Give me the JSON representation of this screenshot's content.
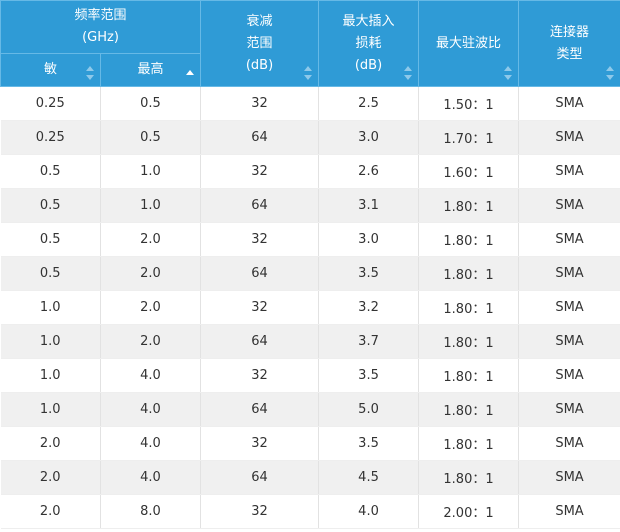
{
  "header": {
    "freq_range_line1": "频率范围",
    "freq_range_line2": "(GHz)",
    "min_label": "敏",
    "max_label": "最高",
    "atten_line1": "衰减",
    "atten_line2": "范围",
    "atten_line3": "(dB)",
    "loss_line1": "最大插入",
    "loss_line2": "损耗",
    "loss_line3": "(dB)",
    "vswr_label": "最大驻波比",
    "conn_line1": "连接器",
    "conn_line2": "类型"
  },
  "rows": [
    {
      "min": "0.25",
      "max": "0.5",
      "atten": "32",
      "loss": "2.5",
      "vswr": "1.50：1",
      "conn": "SMA"
    },
    {
      "min": "0.25",
      "max": "0.5",
      "atten": "64",
      "loss": "3.0",
      "vswr": "1.70：1",
      "conn": "SMA"
    },
    {
      "min": "0.5",
      "max": "1.0",
      "atten": "32",
      "loss": "2.6",
      "vswr": "1.60：1",
      "conn": "SMA"
    },
    {
      "min": "0.5",
      "max": "1.0",
      "atten": "64",
      "loss": "3.1",
      "vswr": "1.80：1",
      "conn": "SMA"
    },
    {
      "min": "0.5",
      "max": "2.0",
      "atten": "32",
      "loss": "3.0",
      "vswr": "1.80：1",
      "conn": "SMA"
    },
    {
      "min": "0.5",
      "max": "2.0",
      "atten": "64",
      "loss": "3.5",
      "vswr": "1.80：1",
      "conn": "SMA"
    },
    {
      "min": "1.0",
      "max": "2.0",
      "atten": "32",
      "loss": "3.2",
      "vswr": "1.80：1",
      "conn": "SMA"
    },
    {
      "min": "1.0",
      "max": "2.0",
      "atten": "64",
      "loss": "3.7",
      "vswr": "1.80：1",
      "conn": "SMA"
    },
    {
      "min": "1.0",
      "max": "4.0",
      "atten": "32",
      "loss": "3.5",
      "vswr": "1.80：1",
      "conn": "SMA"
    },
    {
      "min": "1.0",
      "max": "4.0",
      "atten": "64",
      "loss": "5.0",
      "vswr": "1.80：1",
      "conn": "SMA"
    },
    {
      "min": "2.0",
      "max": "4.0",
      "atten": "32",
      "loss": "3.5",
      "vswr": "1.80：1",
      "conn": "SMA"
    },
    {
      "min": "2.0",
      "max": "4.0",
      "atten": "64",
      "loss": "4.5",
      "vswr": "1.80：1",
      "conn": "SMA"
    },
    {
      "min": "2.0",
      "max": "8.0",
      "atten": "32",
      "loss": "4.0",
      "vswr": "2.00：1",
      "conn": "SMA"
    }
  ],
  "colors": {
    "header_bg": "#2f9bd6",
    "header_text": "#ffffff",
    "row_alt_bg": "#f0f0f0",
    "body_text": "#333333"
  }
}
